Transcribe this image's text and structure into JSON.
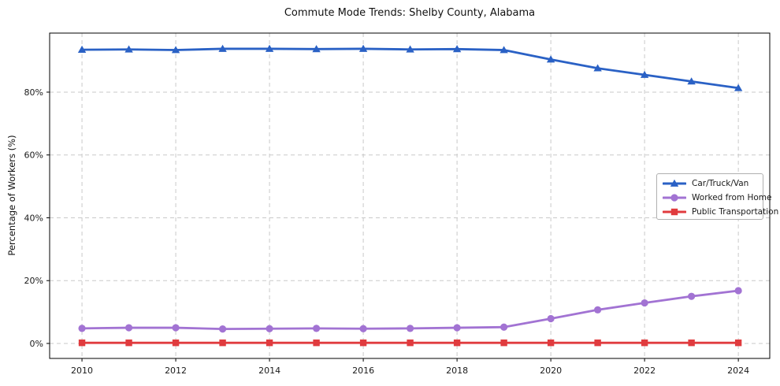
{
  "chart_data": {
    "type": "line",
    "title": "Commute Mode Trends: Shelby County, Alabama",
    "xlabel": "",
    "ylabel": "Percentage of Workers (%)",
    "x": [
      2010,
      2011,
      2012,
      2013,
      2014,
      2015,
      2016,
      2017,
      2018,
      2019,
      2020,
      2021,
      2022,
      2023,
      2024
    ],
    "series": [
      {
        "name": "Car/Truck/Van",
        "color": "#2a61c5",
        "marker": "triangle",
        "values": [
          93.5,
          93.6,
          93.4,
          93.8,
          93.8,
          93.7,
          93.8,
          93.6,
          93.7,
          93.4,
          90.4,
          87.6,
          85.5,
          83.4,
          81.3
        ]
      },
      {
        "name": "Worked from Home",
        "color": "#a273d3",
        "marker": "circle",
        "values": [
          4.8,
          5.0,
          5.0,
          4.6,
          4.7,
          4.8,
          4.7,
          4.8,
          5.0,
          5.2,
          7.9,
          10.7,
          12.9,
          15.0,
          16.8
        ]
      },
      {
        "name": "Public Transportation",
        "color": "#e03b3e",
        "marker": "square",
        "values": [
          0.2,
          0.2,
          0.2,
          0.2,
          0.2,
          0.2,
          0.2,
          0.2,
          0.2,
          0.2,
          0.2,
          0.2,
          0.2,
          0.2,
          0.2
        ]
      }
    ],
    "xticks": [
      2010,
      2012,
      2014,
      2016,
      2018,
      2020,
      2022,
      2024
    ],
    "yticks": [
      0,
      20,
      40,
      60,
      80
    ],
    "ytick_suffix": "%",
    "xlim": [
      2009.31,
      2024.67
    ],
    "ylim": [
      -4.77,
      98.8
    ],
    "grid": true,
    "grid_style": "dashed",
    "legend_position": "center-right",
    "colors": {
      "grid": "#c9c9c9",
      "spine": "#000000",
      "tick_label": "#1a1a1a"
    }
  }
}
